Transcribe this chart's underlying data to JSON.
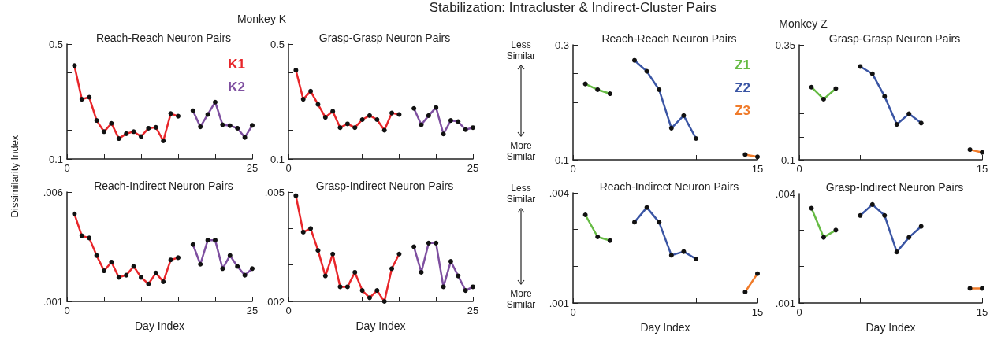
{
  "chart_data": [
    {
      "type": "line",
      "title": "Reach-Reach Neuron Pairs",
      "ylabel": "Dissimilarity Index",
      "annotations": [
        "Stabilization: Intracluster & Indirect-Cluster Pairs",
        "Monkey K"
      ],
      "xlim": [
        0,
        25
      ],
      "xticks": [
        0,
        {
          "value": 5,
          "label": null
        },
        {
          "value": 10,
          "label": null
        },
        {
          "value": 15,
          "label": null
        },
        {
          "value": 20,
          "label": null
        },
        25
      ],
      "ylim": [
        0.1,
        0.5
      ],
      "yticks": [
        0.1,
        {
          "value": 0.2,
          "label": null
        },
        {
          "value": 0.3,
          "label": null
        },
        {
          "value": 0.4,
          "label": null
        },
        0.5
      ],
      "grid": false,
      "legend": "top right",
      "marker": "circle",
      "series": [
        {
          "name": "K1",
          "color": "#e8262a",
          "x": [
            1,
            2,
            3,
            4,
            5,
            6,
            7,
            8,
            9,
            10,
            11,
            12,
            13,
            14,
            15
          ],
          "values": [
            0.425,
            0.308,
            0.315,
            0.234,
            0.195,
            0.224,
            0.171,
            0.188,
            0.195,
            0.178,
            0.207,
            0.21,
            0.163,
            0.258,
            0.249
          ]
        },
        {
          "name": "K2",
          "color": "#7e4fa0",
          "x": [
            17,
            18,
            19,
            20,
            21,
            22,
            23,
            24,
            25
          ],
          "values": [
            0.268,
            0.212,
            0.255,
            0.298,
            0.219,
            0.216,
            0.207,
            0.175,
            0.217
          ]
        }
      ]
    },
    {
      "type": "line",
      "title": "Grasp-Grasp Neuron Pairs",
      "xlim": [
        0,
        25
      ],
      "xticks": [
        0,
        {
          "value": 5,
          "label": null
        },
        {
          "value": 10,
          "label": null
        },
        {
          "value": 15,
          "label": null
        },
        {
          "value": 20,
          "label": null
        },
        25
      ],
      "ylim": [
        0.1,
        0.5
      ],
      "yticks": [
        0.1,
        {
          "value": 0.2,
          "label": null
        },
        {
          "value": 0.3,
          "label": null
        },
        {
          "value": 0.4,
          "label": null
        },
        0.5
      ],
      "grid": false,
      "marker": "circle",
      "series": [
        {
          "color": "#e8262a",
          "x": [
            1,
            2,
            3,
            4,
            5,
            6,
            7,
            8,
            9,
            10,
            11,
            12,
            13,
            14,
            15
          ],
          "values": [
            0.409,
            0.308,
            0.336,
            0.29,
            0.245,
            0.266,
            0.209,
            0.222,
            0.209,
            0.237,
            0.251,
            0.237,
            0.2,
            0.26,
            0.255
          ]
        },
        {
          "color": "#7e4fa0",
          "x": [
            17,
            18,
            19,
            20,
            21,
            22,
            23,
            24,
            25
          ],
          "values": [
            0.276,
            0.219,
            0.251,
            0.279,
            0.187,
            0.234,
            0.23,
            0.202,
            0.209
          ]
        }
      ]
    },
    {
      "type": "line",
      "title": "Reach-Reach Neuron Pairs",
      "annotations": [
        "Monkey Z",
        "Less Similar",
        "More Similar"
      ],
      "xlim": [
        0,
        15
      ],
      "xticks": [
        0,
        {
          "value": 5,
          "label": null
        },
        {
          "value": 10,
          "label": null
        },
        15
      ],
      "ylim": [
        0.1,
        0.3
      ],
      "yticks": [
        0.1,
        {
          "value": 0.15,
          "label": null
        },
        {
          "value": 0.2,
          "label": null
        },
        {
          "value": 0.25,
          "label": null
        },
        0.3
      ],
      "grid": false,
      "legend": "top right",
      "marker": "circle",
      "series": [
        {
          "name": "Z1",
          "color": "#66bb44",
          "x": [
            1,
            2,
            3
          ],
          "values": [
            0.232,
            0.222,
            0.215
          ]
        },
        {
          "name": "Z2",
          "color": "#3a55a4",
          "x": [
            5,
            6,
            7,
            8,
            9,
            10
          ],
          "values": [
            0.273,
            0.254,
            0.222,
            0.155,
            0.177,
            0.137
          ]
        },
        {
          "name": "Z3",
          "color": "#f07b2a",
          "x": [
            14,
            15
          ],
          "values": [
            0.109,
            0.105
          ]
        }
      ]
    },
    {
      "type": "line",
      "title": "Grasp-Grasp Neuron Pairs",
      "xlim": [
        0,
        15
      ],
      "xticks": [
        0,
        {
          "value": 5,
          "label": null
        },
        {
          "value": 10,
          "label": null
        },
        15
      ],
      "ylim": [
        0.1,
        0.35
      ],
      "yticks": [
        0.1,
        {
          "value": 0.15,
          "label": null
        },
        {
          "value": 0.2,
          "label": null
        },
        {
          "value": 0.25,
          "label": null
        },
        {
          "value": 0.3,
          "label": null
        },
        0.35
      ],
      "grid": false,
      "marker": "circle",
      "series": [
        {
          "color": "#66bb44",
          "x": [
            1,
            2,
            3
          ],
          "values": [
            0.258,
            0.232,
            0.255
          ]
        },
        {
          "color": "#3a55a4",
          "x": [
            5,
            6,
            7,
            8,
            9,
            10
          ],
          "values": [
            0.303,
            0.287,
            0.238,
            0.177,
            0.2,
            0.18
          ]
        },
        {
          "color": "#f07b2a",
          "x": [
            14,
            15
          ],
          "values": [
            0.122,
            0.116
          ]
        }
      ]
    },
    {
      "type": "line",
      "title": "Reach-Indirect Neuron Pairs",
      "xlabel": "Day Index",
      "xlim": [
        0,
        25
      ],
      "xticks": [
        0,
        {
          "value": 5,
          "label": null
        },
        {
          "value": 10,
          "label": null
        },
        {
          "value": 15,
          "label": null
        },
        {
          "value": 20,
          "label": null
        },
        25
      ],
      "ylim": [
        0.001,
        0.006
      ],
      "yticks": [
        {
          "value": 0.001,
          "label": ".001"
        },
        {
          "value": 0.006,
          "label": ".006"
        }
      ],
      "grid": false,
      "marker": "circle",
      "series": [
        {
          "color": "#e8262a",
          "x": [
            1,
            2,
            3,
            4,
            5,
            6,
            7,
            8,
            9,
            10,
            11,
            12,
            13,
            14,
            15
          ],
          "values": [
            0.005,
            0.004,
            0.0039,
            0.0031,
            0.0024,
            0.0028,
            0.0021,
            0.0022,
            0.0026,
            0.0021,
            0.0018,
            0.0023,
            0.0019,
            0.0029,
            0.003
          ]
        },
        {
          "color": "#7e4fa0",
          "x": [
            17,
            18,
            19,
            20,
            21,
            22,
            23,
            24,
            25
          ],
          "values": [
            0.0036,
            0.0027,
            0.0038,
            0.0038,
            0.0025,
            0.0031,
            0.0026,
            0.0022,
            0.0025
          ]
        }
      ]
    },
    {
      "type": "line",
      "title": "Grasp-Indirect Neuron Pairs",
      "xlabel": "Day Index",
      "xlim": [
        0,
        25
      ],
      "xticks": [
        0,
        {
          "value": 5,
          "label": null
        },
        {
          "value": 10,
          "label": null
        },
        {
          "value": 15,
          "label": null
        },
        {
          "value": 20,
          "label": null
        },
        25
      ],
      "ylim": [
        0.002,
        0.005
      ],
      "yticks": [
        {
          "value": 0.002,
          "label": ".002"
        },
        {
          "value": 0.003,
          "label": null
        },
        {
          "value": 0.004,
          "label": null
        },
        {
          "value": 0.005,
          "label": ".005"
        }
      ],
      "grid": false,
      "marker": "circle",
      "series": [
        {
          "color": "#e8262a",
          "x": [
            1,
            2,
            3,
            4,
            5,
            6,
            7,
            8,
            9,
            10,
            11,
            12,
            13,
            14,
            15
          ],
          "values": [
            0.0049,
            0.0039,
            0.004,
            0.0034,
            0.0027,
            0.0033,
            0.0024,
            0.0024,
            0.0028,
            0.0023,
            0.0021,
            0.0023,
            0.002,
            0.0029,
            0.0033
          ]
        },
        {
          "color": "#7e4fa0",
          "x": [
            17,
            18,
            19,
            20,
            21,
            22,
            23,
            24,
            25
          ],
          "values": [
            0.0035,
            0.0028,
            0.0036,
            0.0036,
            0.0024,
            0.0031,
            0.0027,
            0.0023,
            0.0024
          ]
        }
      ]
    },
    {
      "type": "line",
      "title": "Reach-Indirect Neuron Pairs",
      "xlabel": "Day Index",
      "annotations": [
        "Less Similar",
        "More Similar"
      ],
      "xlim": [
        0,
        15
      ],
      "xticks": [
        0,
        {
          "value": 5,
          "label": null
        },
        {
          "value": 10,
          "label": null
        },
        15
      ],
      "ylim": [
        0.001,
        0.004
      ],
      "yticks": [
        {
          "value": 0.001,
          "label": ".001"
        },
        {
          "value": 0.002,
          "label": null
        },
        {
          "value": 0.003,
          "label": null
        },
        {
          "value": 0.004,
          "label": ".004"
        }
      ],
      "grid": false,
      "marker": "circle",
      "series": [
        {
          "color": "#66bb44",
          "x": [
            1,
            2,
            3
          ],
          "values": [
            0.0034,
            0.0028,
            0.0027
          ]
        },
        {
          "color": "#3a55a4",
          "x": [
            5,
            6,
            7,
            8,
            9,
            10
          ],
          "values": [
            0.0032,
            0.0036,
            0.0032,
            0.0023,
            0.0024,
            0.0022
          ]
        },
        {
          "color": "#f07b2a",
          "x": [
            14,
            15
          ],
          "values": [
            0.0013,
            0.0018
          ]
        }
      ]
    },
    {
      "type": "line",
      "title": "Grasp-Indirect Neuron Pairs",
      "xlabel": "Day Index",
      "xlim": [
        0,
        15
      ],
      "xticks": [
        0,
        {
          "value": 5,
          "label": null
        },
        {
          "value": 10,
          "label": null
        },
        15
      ],
      "ylim": [
        0.001,
        0.004
      ],
      "yticks": [
        {
          "value": 0.001,
          "label": ".001"
        },
        {
          "value": 0.002,
          "label": null
        },
        {
          "value": 0.003,
          "label": null
        },
        {
          "value": 0.004,
          "label": ".004"
        }
      ],
      "grid": false,
      "marker": "circle",
      "series": [
        {
          "color": "#66bb44",
          "x": [
            1,
            2,
            3
          ],
          "values": [
            0.0036,
            0.0028,
            0.003
          ]
        },
        {
          "color": "#3a55a4",
          "x": [
            5,
            6,
            7,
            8,
            9,
            10
          ],
          "values": [
            0.0034,
            0.0037,
            0.0034,
            0.0024,
            0.0028,
            0.0031
          ]
        },
        {
          "color": "#f07b2a",
          "x": [
            14,
            15
          ],
          "values": [
            0.0014,
            0.0014
          ]
        }
      ]
    }
  ]
}
